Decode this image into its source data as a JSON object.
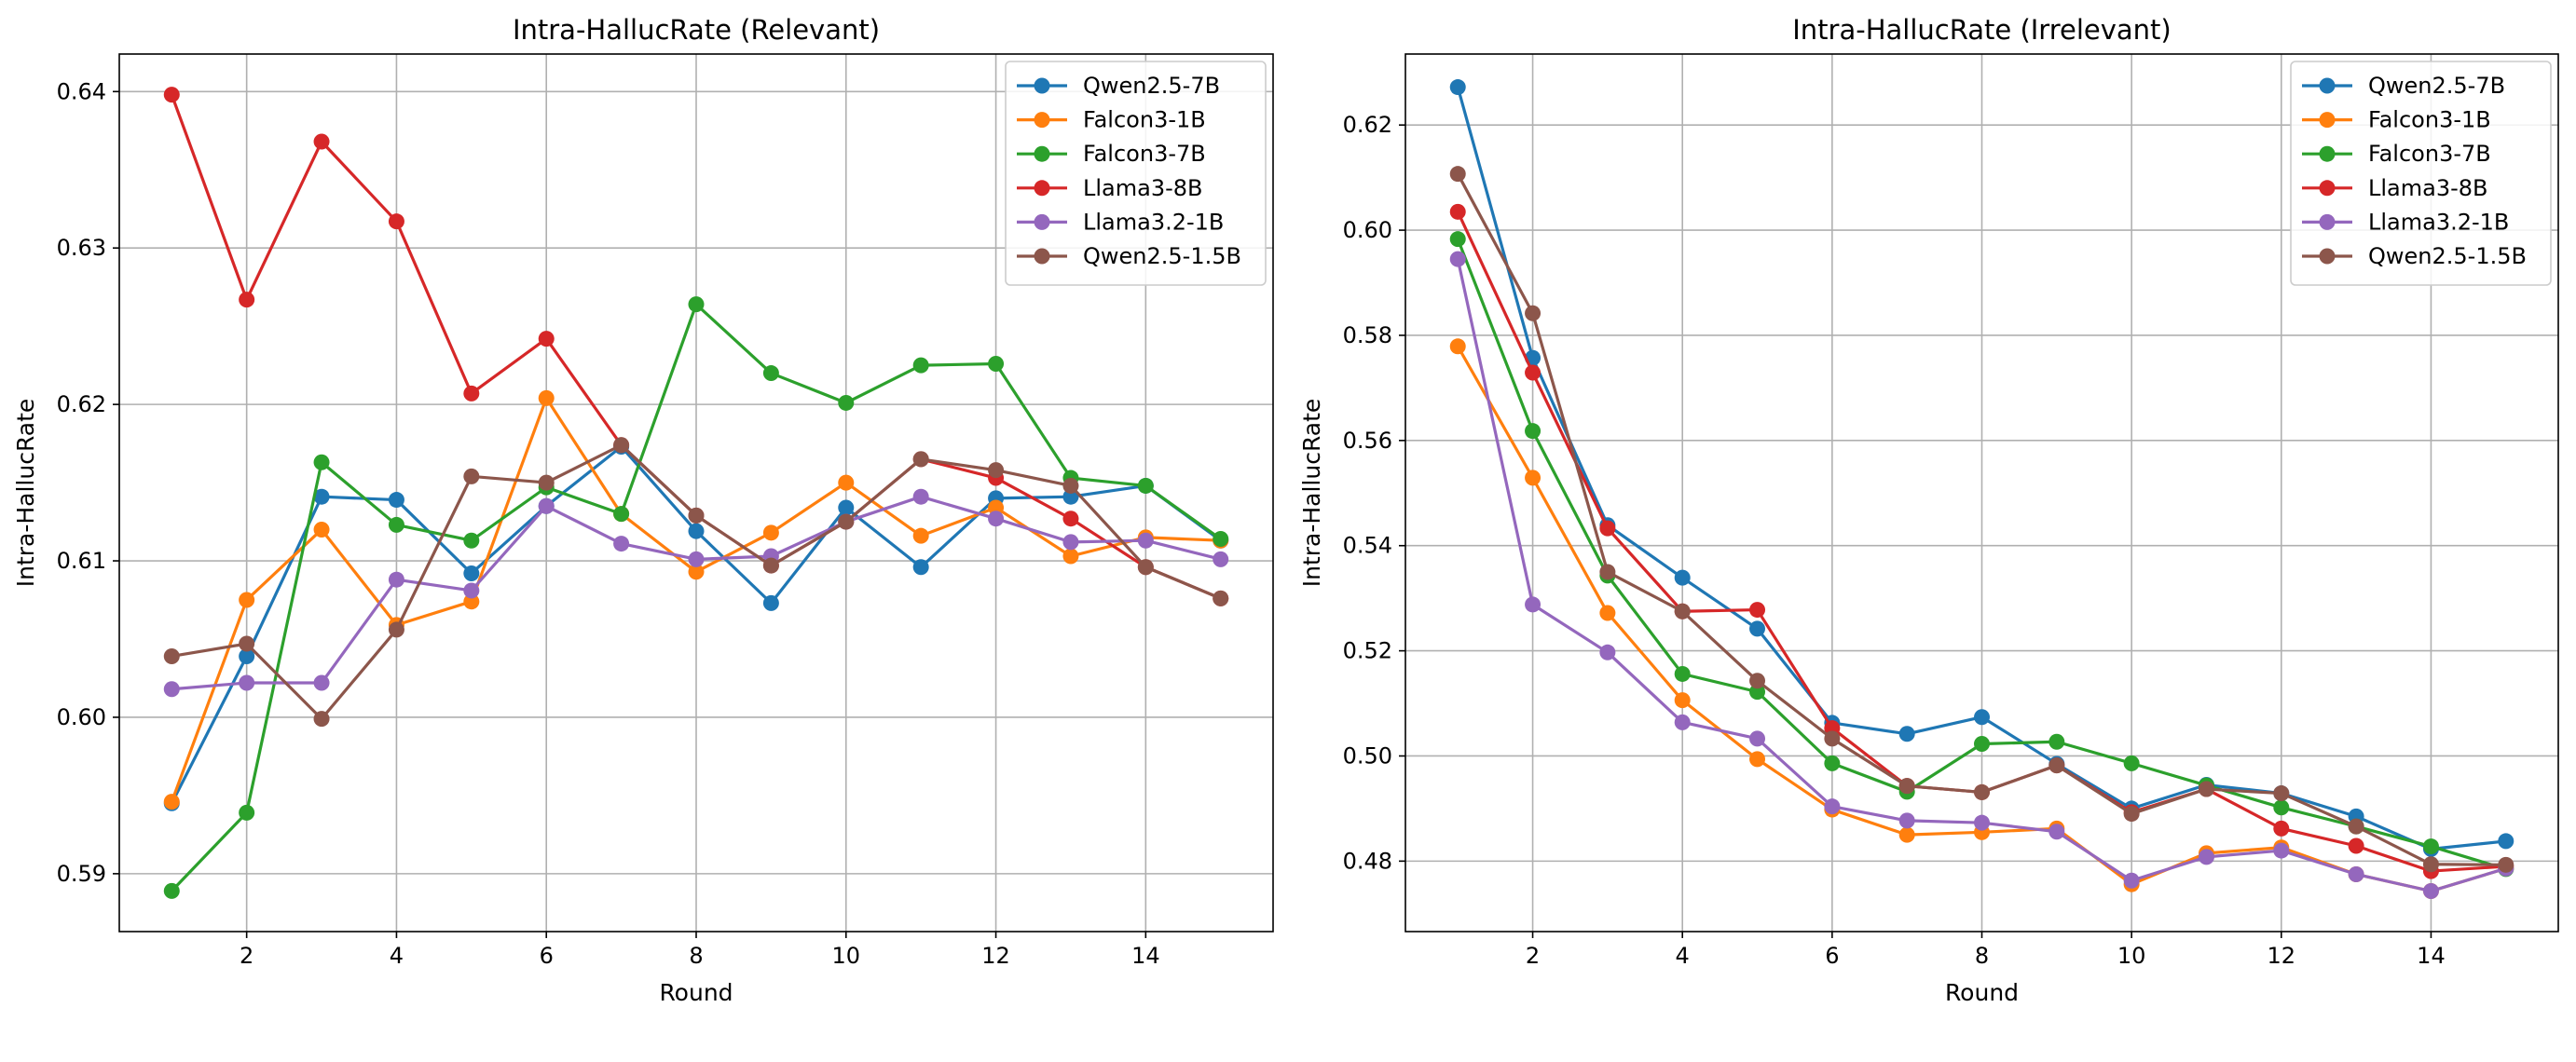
{
  "chart_data": [
    {
      "type": "line",
      "title": "Intra-HallucRate (Relevant)",
      "xlabel": "Round",
      "ylabel": "Intra-HallucRate",
      "xlim": [
        0.3,
        15.7
      ],
      "ylim": [
        0.5863,
        0.6424
      ],
      "xticks": [
        2,
        4,
        6,
        8,
        10,
        12,
        14
      ],
      "xtick_labels": [
        "2",
        "4",
        "6",
        "8",
        "10",
        "12",
        "14"
      ],
      "yticks": [
        0.59,
        0.6,
        0.61,
        0.62,
        0.63,
        0.64
      ],
      "ytick_labels": [
        "0.59",
        "0.60",
        "0.61",
        "0.62",
        "0.63",
        "0.64"
      ],
      "grid": true,
      "legend_position": "top-right",
      "x": [
        1,
        2,
        3,
        4,
        5,
        6,
        7,
        8,
        9,
        10,
        11,
        12,
        13,
        14,
        15
      ],
      "series": [
        {
          "name": "Qwen2.5-7B",
          "color": "#1f77b4",
          "values": [
            0.5945,
            0.6039,
            0.6141,
            0.6139,
            0.6092,
            0.6135,
            0.6173,
            0.6119,
            0.6073,
            0.6134,
            0.6096,
            0.614,
            0.6141,
            0.6148,
            0.6113
          ]
        },
        {
          "name": "Falcon3-1B",
          "color": "#ff7f0e",
          "values": [
            0.5946,
            0.6075,
            0.612,
            0.6059,
            0.6074,
            0.6204,
            0.613,
            0.6093,
            0.6118,
            0.615,
            0.6116,
            0.6134,
            0.6103,
            0.6115,
            0.6113
          ]
        },
        {
          "name": "Falcon3-7B",
          "color": "#2ca02c",
          "values": [
            0.5889,
            0.5939,
            0.6163,
            0.6123,
            0.6113,
            0.6147,
            0.613,
            0.6264,
            0.622,
            0.6201,
            0.6225,
            0.6226,
            0.6153,
            0.6148,
            0.6114
          ]
        },
        {
          "name": "Llama3-8B",
          "color": "#d62728",
          "values": [
            0.6398,
            0.6267,
            0.6368,
            0.6317,
            0.6207,
            0.6242,
            0.6174,
            0.6129,
            0.6097,
            0.6125,
            0.6165,
            0.6153,
            0.6127,
            0.6096,
            0.6076
          ]
        },
        {
          "name": "Llama3.2-1B",
          "color": "#9467bd",
          "values": [
            0.6018,
            0.6022,
            0.6022,
            0.6088,
            0.6081,
            0.6135,
            0.6111,
            0.6101,
            0.6103,
            0.6125,
            0.6141,
            0.6127,
            0.6112,
            0.6113,
            0.6101
          ]
        },
        {
          "name": "Qwen2.5-1.5B",
          "color": "#8c564b",
          "values": [
            0.6039,
            0.6047,
            0.5999,
            0.6056,
            0.6154,
            0.615,
            0.6174,
            0.6129,
            0.6097,
            0.6125,
            0.6165,
            0.6158,
            0.6148,
            0.6096,
            0.6076
          ]
        }
      ]
    },
    {
      "type": "line",
      "title": "Intra-HallucRate (Irrelevant)",
      "xlabel": "Round",
      "ylabel": "Intra-HallucRate",
      "xlim": [
        0.3,
        15.7
      ],
      "ylim": [
        0.4666,
        0.6335
      ],
      "xticks": [
        2,
        4,
        6,
        8,
        10,
        12,
        14
      ],
      "xtick_labels": [
        "2",
        "4",
        "6",
        "8",
        "10",
        "12",
        "14"
      ],
      "yticks": [
        0.48,
        0.5,
        0.52,
        0.54,
        0.56,
        0.58,
        0.6,
        0.62
      ],
      "ytick_labels": [
        "0.48",
        "0.50",
        "0.52",
        "0.54",
        "0.56",
        "0.58",
        "0.60",
        "0.62"
      ],
      "grid": true,
      "legend_position": "top-right",
      "x": [
        1,
        2,
        3,
        4,
        5,
        6,
        7,
        8,
        9,
        10,
        11,
        12,
        13,
        14,
        15
      ],
      "series": [
        {
          "name": "Qwen2.5-7B",
          "color": "#1f77b4",
          "values": [
            0.6272,
            0.5757,
            0.5439,
            0.5339,
            0.5242,
            0.5063,
            0.5042,
            0.5074,
            0.4985,
            0.49,
            0.4945,
            0.4929,
            0.4885,
            0.4823,
            0.4838
          ]
        },
        {
          "name": "Falcon3-1B",
          "color": "#ff7f0e",
          "values": [
            0.5779,
            0.5529,
            0.5272,
            0.5106,
            0.4994,
            0.4898,
            0.485,
            0.4855,
            0.4862,
            0.4756,
            0.4815,
            0.4826,
            0.4775,
            0.4743,
            0.4786
          ]
        },
        {
          "name": "Falcon3-7B",
          "color": "#2ca02c",
          "values": [
            0.5983,
            0.5618,
            0.5343,
            0.5156,
            0.5122,
            0.4986,
            0.4932,
            0.5023,
            0.5027,
            0.4986,
            0.4944,
            0.4902,
            0.4866,
            0.4828,
            0.4785
          ]
        },
        {
          "name": "Llama3-8B",
          "color": "#d62728",
          "values": [
            0.6035,
            0.5729,
            0.5433,
            0.5275,
            0.5278,
            0.5053,
            0.4943,
            0.4931,
            0.4982,
            0.4893,
            0.4937,
            0.4862,
            0.4829,
            0.4781,
            0.479
          ]
        },
        {
          "name": "Llama3.2-1B",
          "color": "#9467bd",
          "values": [
            0.5945,
            0.5288,
            0.5197,
            0.5064,
            0.5033,
            0.4904,
            0.4877,
            0.4873,
            0.4856,
            0.4763,
            0.4808,
            0.482,
            0.4775,
            0.4743,
            0.4786
          ]
        },
        {
          "name": "Qwen2.5-1.5B",
          "color": "#8c564b",
          "values": [
            0.6107,
            0.5842,
            0.535,
            0.5275,
            0.5143,
            0.5033,
            0.4943,
            0.4931,
            0.4982,
            0.489,
            0.4937,
            0.4929,
            0.4866,
            0.4794,
            0.4793
          ]
        }
      ]
    }
  ]
}
